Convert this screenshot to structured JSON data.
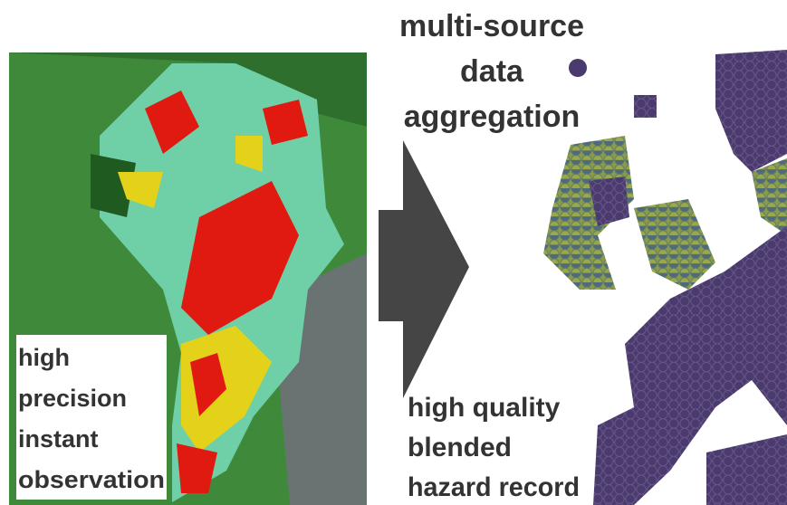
{
  "left_label": {
    "lines": [
      "high",
      "precision",
      "instant",
      "observation"
    ]
  },
  "center_label": {
    "lines": [
      "multi-source",
      "data",
      "aggregation"
    ]
  },
  "right_label": {
    "lines": [
      "high quality",
      "blended",
      "hazard record"
    ]
  }
}
